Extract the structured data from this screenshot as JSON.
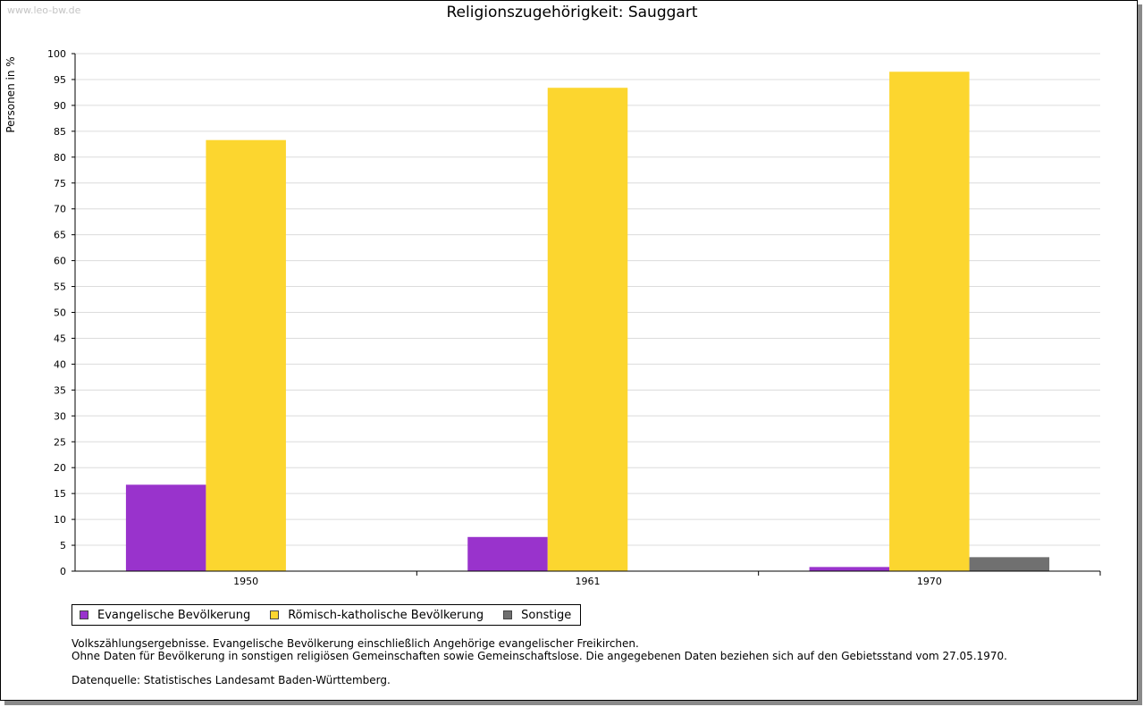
{
  "watermark": "www.leo-bw.de",
  "chart_data": {
    "type": "bar",
    "title": "Religionszugehörigkeit: Sauggart",
    "xlabel": "",
    "ylabel": "Personen in %",
    "ylim": [
      0,
      100
    ],
    "yticks": [
      "0",
      "5",
      "10",
      "15",
      "20",
      "25",
      "30",
      "35",
      "40",
      "45",
      "50",
      "55",
      "60",
      "65",
      "70",
      "75",
      "80",
      "85",
      "90",
      "95",
      "100"
    ],
    "categories": [
      "1950",
      "1961",
      "1970"
    ],
    "series": [
      {
        "name": "Evangelische Bevölkerung",
        "color": "#9933cc",
        "values": [
          16.7,
          6.6,
          0.8
        ]
      },
      {
        "name": "Römisch-katholische Bevölkerung",
        "color": "#fcd62f",
        "values": [
          83.3,
          93.4,
          96.5
        ]
      },
      {
        "name": "Sonstige",
        "color": "#707070",
        "values": [
          null,
          null,
          2.7
        ]
      }
    ],
    "grid": true,
    "legend_position": "bottom-left"
  },
  "notes": {
    "line1": "Volkszählungsergebnisse. Evangelische Bevölkerung einschließlich Angehörige evangelischer Freikirchen.",
    "line2": "Ohne Daten für Bevölkerung in sonstigen religiösen Gemeinschaften sowie Gemeinschaftslose. Die angegebenen Daten beziehen sich auf den Gebietsstand vom 27.05.1970.",
    "source": "Datenquelle: Statistisches Landesamt Baden-Württemberg."
  }
}
